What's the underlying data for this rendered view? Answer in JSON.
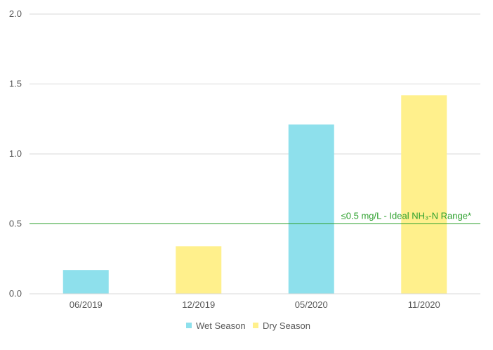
{
  "chart_data": {
    "type": "bar",
    "categories": [
      "06/2019",
      "12/2019",
      "05/2020",
      "11/2020"
    ],
    "values": [
      0.17,
      0.34,
      1.21,
      1.42
    ],
    "seasons": [
      "Wet Season",
      "Dry Season",
      "Wet Season",
      "Dry Season"
    ],
    "title": "",
    "xlabel": "",
    "ylabel": "",
    "ylim": [
      0,
      2.0
    ],
    "yticks": [
      "0.0",
      "0.5",
      "1.0",
      "1.5",
      "2.0"
    ],
    "grid": true,
    "legend": {
      "placement": "bottom",
      "entries": [
        {
          "name": "Wet Season",
          "color": "#8ee0ec"
        },
        {
          "name": "Dry Season",
          "color": "#fff08c"
        }
      ]
    },
    "reference_line": {
      "value": 0.5,
      "label": "≤0.5 mg/L - Ideal NH₃-N Range*",
      "color": "#2ca02c"
    }
  }
}
